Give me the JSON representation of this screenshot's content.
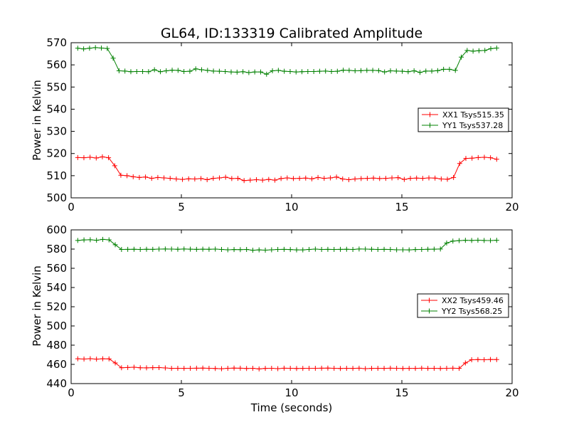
{
  "colors": {
    "xx": "#ff0000",
    "yy": "#008000"
  },
  "chart_data": [
    {
      "type": "line",
      "title": "GL64, ID:133319 Calibrated Amplitude",
      "xlabel": "",
      "ylabel": "Power in Kelvin",
      "xlim": [
        0,
        20
      ],
      "ylim": [
        500,
        570
      ],
      "xticks": [
        0,
        5,
        10,
        15,
        20
      ],
      "yticks": [
        500,
        510,
        520,
        530,
        540,
        550,
        560,
        570
      ],
      "legend_position": "center-right",
      "marker": "+",
      "x": [
        0.3,
        0.6,
        0.9,
        1.2,
        1.5,
        1.8,
        2.1,
        2.4,
        2.7,
        3.0,
        3.3,
        3.6,
        3.9,
        4.2,
        4.5,
        4.8,
        5.1,
        5.4,
        5.7,
        6.0,
        6.3,
        6.6,
        6.9,
        7.2,
        7.5,
        7.8,
        8.1,
        8.4,
        8.7,
        9.0,
        9.3,
        9.6,
        9.9,
        10.2,
        10.5,
        10.8,
        11.1,
        11.4,
        11.7,
        12.0,
        12.3,
        12.6,
        12.9,
        13.2,
        13.5,
        13.8,
        14.1,
        14.4,
        14.7,
        15.0,
        15.3,
        15.6,
        15.9,
        16.2,
        16.5,
        16.8,
        17.1,
        17.4,
        17.7,
        18.0,
        18.3,
        18.6,
        18.9,
        19.2
      ],
      "series": [
        {
          "name": "XX1 Tsys515.35",
          "color": "#ff0000",
          "values": [
            518.2,
            518.1,
            518.3,
            518.0,
            518.5,
            518.1,
            514.5,
            510.2,
            510.0,
            509.5,
            509.2,
            509.4,
            508.8,
            509.2,
            509.0,
            508.8,
            508.5,
            508.3,
            508.6,
            508.5,
            508.7,
            508.2,
            508.8,
            509.0,
            509.3,
            508.7,
            508.8,
            507.8,
            508.0,
            508.2,
            508.0,
            508.3,
            508.0,
            508.7,
            509.0,
            508.7,
            508.8,
            508.9,
            508.6,
            509.2,
            508.8,
            509.0,
            509.4,
            508.5,
            508.2,
            508.5,
            508.7,
            508.8,
            508.9,
            508.7,
            508.8,
            509.0,
            509.1,
            508.3,
            508.8,
            508.9,
            508.8,
            509.0,
            508.9,
            508.5,
            508.4,
            509.2,
            515.5,
            517.8
          ],
          "values_tail": [
            517.9,
            518.2,
            518.3,
            518.1,
            517.4
          ]
        },
        {
          "name": "YY1 Tsys537.28",
          "color": "#008000",
          "values": [
            567.5,
            567.2,
            567.5,
            567.8,
            567.6,
            567.4,
            563.0,
            557.3,
            557.2,
            556.9,
            557.0,
            557.0,
            556.9,
            557.8,
            556.9,
            557.3,
            557.6,
            557.5,
            557.0,
            557.1,
            558.2,
            557.8,
            557.5,
            557.2,
            557.1,
            557.0,
            556.8,
            556.7,
            556.9,
            556.5,
            556.8,
            556.8,
            555.8,
            557.3,
            557.5,
            557.1,
            557.0,
            556.8,
            556.9,
            557.0,
            557.0,
            557.1,
            557.2,
            557.0,
            557.1,
            557.6,
            557.5,
            557.3,
            557.4,
            557.5,
            557.5,
            557.4,
            556.8,
            557.3,
            557.2,
            557.1,
            556.9,
            557.3,
            556.6,
            557.2,
            557.2,
            557.4,
            558.0,
            558.0
          ],
          "values_tail": [
            557.5,
            563.5,
            566.5,
            566.2,
            566.4,
            566.5,
            567.3,
            567.6
          ]
        }
      ]
    },
    {
      "type": "line",
      "title": "",
      "xlabel": "Time (seconds)",
      "ylabel": "Power in Kelvin",
      "xlim": [
        0,
        20
      ],
      "ylim": [
        440,
        600
      ],
      "xticks": [
        0,
        5,
        10,
        15,
        20
      ],
      "yticks": [
        440,
        460,
        480,
        500,
        520,
        540,
        560,
        580,
        600
      ],
      "legend_position": "center-right",
      "marker": "+",
      "series": [
        {
          "name": "XX2 Tsys459.46",
          "color": "#ff0000",
          "values": [
            465.8,
            465.6,
            465.9,
            465.5,
            465.8,
            465.7,
            461.5,
            456.5,
            456.8,
            457.0,
            456.5,
            456.4,
            456.6,
            456.7,
            456.3,
            455.8,
            455.9,
            455.8,
            455.9,
            456.0,
            456.1,
            455.9,
            455.7,
            455.5,
            455.9,
            456.1,
            456.0,
            455.7,
            455.9,
            455.3,
            455.8,
            455.9,
            455.6,
            456.0,
            455.9,
            455.7,
            455.8,
            455.9,
            455.9,
            456.0,
            456.1,
            455.9,
            455.7,
            455.9,
            455.8,
            456.0,
            455.6,
            455.8,
            455.9,
            455.8,
            456.0,
            455.9,
            455.7,
            455.8,
            455.8,
            456.0,
            455.8,
            455.9,
            455.7,
            455.9,
            456.0,
            455.8,
            461.5,
            464.8,
            465.0,
            464.8,
            465.1,
            465.0
          ]
        },
        {
          "name": "YY2 Tsys568.25",
          "color": "#008000",
          "values": [
            589.0,
            589.5,
            589.7,
            589.2,
            590.1,
            589.6,
            584.5,
            579.6,
            579.7,
            579.8,
            579.6,
            579.8,
            579.7,
            580.0,
            580.1,
            580.0,
            579.8,
            580.1,
            579.9,
            579.7,
            579.9,
            579.8,
            580.0,
            579.6,
            579.3,
            579.5,
            579.4,
            579.6,
            578.8,
            579.2,
            578.9,
            579.3,
            579.6,
            579.7,
            579.5,
            579.2,
            579.2,
            579.6,
            580.0,
            579.6,
            579.7,
            579.6,
            579.7,
            579.8,
            579.6,
            580.1,
            580.0,
            579.8,
            579.6,
            579.7,
            579.6,
            579.3,
            579.3,
            579.2,
            579.5,
            579.6,
            579.8,
            579.9,
            580.1,
            586.3,
            588.3,
            588.8,
            589.2,
            589.0,
            589.3,
            589.0,
            588.9,
            589.2
          ]
        }
      ]
    }
  ]
}
